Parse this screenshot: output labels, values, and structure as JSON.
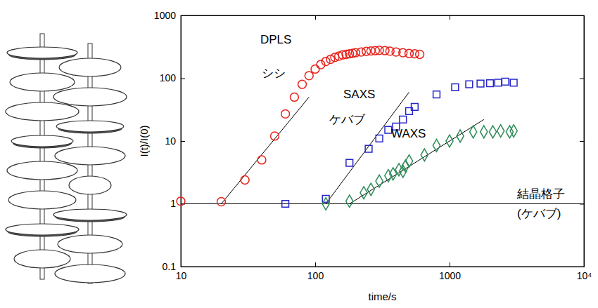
{
  "chart_data": {
    "type": "scatter",
    "log": true,
    "grid": false,
    "xlabel": "time/s",
    "ylabel": "I(t)/I(0)",
    "xlim": [
      10,
      10000
    ],
    "ylim": [
      0.1,
      1000
    ],
    "xticks": [
      10,
      100,
      1000,
      {
        "value": 10000,
        "label": "10⁴"
      }
    ],
    "yticks": [
      0.1,
      1,
      10,
      100,
      1000
    ],
    "reference_line": 1,
    "series": [
      {
        "color": "#e8231c",
        "marker": "circle",
        "x": [
          10,
          20,
          30,
          40,
          50,
          60,
          70,
          80,
          90,
          100,
          110,
          120,
          130,
          140,
          150,
          160,
          170,
          180,
          190,
          200,
          220,
          240,
          260,
          280,
          300,
          330,
          360,
          400,
          450,
          500,
          550,
          600
        ],
        "values": [
          1.1,
          1.08,
          2.4,
          5,
          12,
          27,
          50,
          80,
          110,
          140,
          165,
          185,
          200,
          215,
          225,
          235,
          240,
          245,
          250,
          255,
          262,
          268,
          272,
          275,
          278,
          275,
          270,
          262,
          255,
          248,
          245,
          240
        ],
        "fit_x": [
          20,
          90
        ],
        "fit_y": [
          1,
          50
        ]
      },
      {
        "color": "#2626c8",
        "marker": "square",
        "x": [
          60,
          120,
          180,
          250,
          300,
          350,
          400,
          450,
          500,
          550,
          800,
          1100,
          1400,
          1700,
          2000,
          2300,
          2600,
          3000
        ],
        "values": [
          1.0,
          1.2,
          4.5,
          7.5,
          11,
          15,
          17,
          22,
          30,
          35,
          55,
          72,
          80,
          82,
          83,
          85,
          88,
          85
        ],
        "fit_x": [
          120,
          500
        ],
        "fit_y": [
          1,
          60
        ]
      },
      {
        "color": "#2e8b57",
        "marker": "diamond",
        "x": [
          120,
          180,
          230,
          260,
          300,
          350,
          380,
          420,
          450,
          470,
          500,
          650,
          800,
          1000,
          1200,
          1500,
          1800,
          2100,
          2400,
          2800,
          3000
        ],
        "values": [
          1.0,
          1.1,
          1.5,
          1.7,
          2.3,
          2.8,
          3.0,
          3.5,
          3.3,
          4,
          4.8,
          6,
          8.5,
          10,
          12,
          14,
          14,
          14,
          14.5,
          14,
          14.5
        ],
        "fit_x": [
          180,
          1800
        ],
        "fit_y": [
          1,
          22
        ]
      }
    ],
    "annotations": [
      "DPLS",
      "シシ",
      "SAXS",
      "ケバブ",
      "WAXS",
      "結晶格子",
      "(ケバブ)"
    ]
  }
}
